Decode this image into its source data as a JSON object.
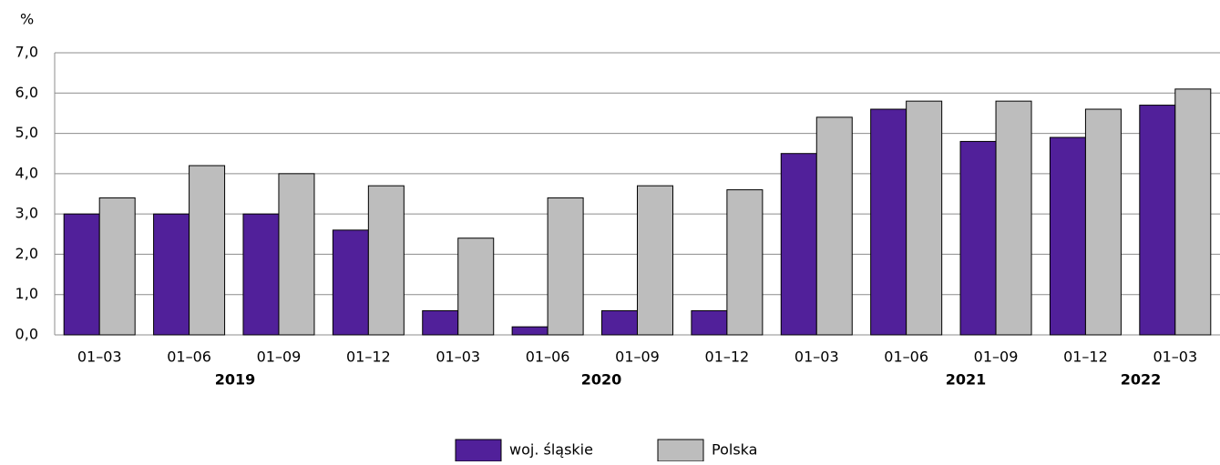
{
  "chart_data": {
    "type": "bar",
    "y_label": "%",
    "categories": [
      "01–03",
      "01–06",
      "01–09",
      "01–12",
      "01–03",
      "01–06",
      "01–09",
      "01–12",
      "01–03",
      "01–06",
      "01–09",
      "01–12",
      "01–03"
    ],
    "year_labels": [
      "2019",
      "2020",
      "2021",
      "2022"
    ],
    "series": [
      {
        "name": "woj. śląskie",
        "color": "#51209a",
        "values": [
          3.0,
          3.0,
          3.0,
          2.6,
          0.6,
          0.2,
          0.6,
          0.6,
          4.5,
          5.6,
          4.8,
          4.9,
          5.7
        ]
      },
      {
        "name": "Polska",
        "color": "#bdbdbd",
        "values": [
          3.4,
          4.2,
          4.0,
          3.7,
          2.4,
          3.4,
          3.7,
          3.6,
          5.4,
          5.8,
          5.8,
          5.6,
          6.1
        ]
      }
    ],
    "ylim": [
      0,
      7
    ],
    "yticks": [
      {
        "value": 0,
        "label": "0,0"
      },
      {
        "value": 1,
        "label": "1,0"
      },
      {
        "value": 2,
        "label": "2,0"
      },
      {
        "value": 3,
        "label": "3,0"
      },
      {
        "value": 4,
        "label": "4,0"
      },
      {
        "value": 5,
        "label": "5,0"
      },
      {
        "value": 6,
        "label": "6,0"
      },
      {
        "value": 7,
        "label": "7,0"
      }
    ],
    "grid": true,
    "legend": "bottom"
  }
}
